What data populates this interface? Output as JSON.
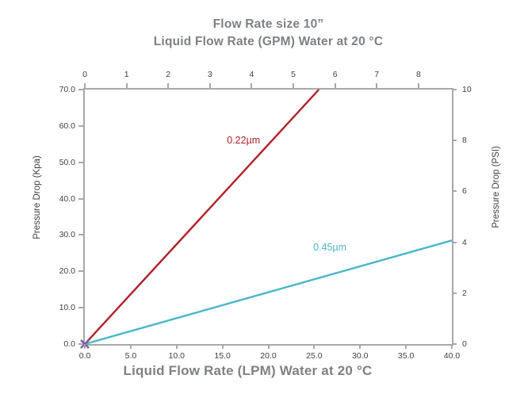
{
  "title": {
    "line1": "Flow Rate size 10”",
    "line2": "Liquid Flow Rate (GPM) Water at 20 °C"
  },
  "bottom_title": "Liquid Flow Rate (LPM) Water at 20 °C",
  "colors": {
    "title_gray": "#7d8184",
    "tick_text": "#3f3f3f",
    "axis_line": "#a8a8a8"
  },
  "chart_data": {
    "type": "line",
    "title": "Flow Rate size 10”",
    "subtitle": "Liquid Flow Rate (GPM) Water at 20 °C",
    "xlabel_bottom": "Liquid Flow Rate (LPM) Water at 20 °C",
    "xlabel_top": "Liquid Flow Rate (GPM) Water at 20 °C",
    "ylabel_left": "Pressure Drop (Kpa)",
    "ylabel_right": "Pressure Drop (PSI)",
    "grid": false,
    "legend_position": "inline-labels",
    "axes": {
      "bottom": {
        "range": [
          0,
          40
        ],
        "tick_values": [
          0,
          5,
          10,
          15,
          20,
          25,
          30,
          35,
          40
        ],
        "tick_labels": [
          "0.0",
          "5.0",
          "10.0",
          "15.0",
          "20.0",
          "25.0",
          "30.0",
          "35.0",
          "40.0"
        ]
      },
      "top": {
        "range": [
          0,
          8.8
        ],
        "tick_values": [
          0,
          1,
          2,
          3,
          4,
          5,
          6,
          7,
          8
        ],
        "tick_labels": [
          "0",
          "1",
          "2",
          "3",
          "4",
          "5",
          "6",
          "7",
          "8"
        ]
      },
      "left": {
        "range": [
          0,
          70
        ],
        "tick_values": [
          0,
          10,
          20,
          30,
          40,
          50,
          60,
          70
        ],
        "tick_labels": [
          "0.0",
          "10.0",
          "20.0",
          "30.0",
          "40.0",
          "50.0",
          "60.0",
          "70.0"
        ]
      },
      "right": {
        "range": [
          0,
          10
        ],
        "tick_values": [
          0,
          2,
          4,
          6,
          8,
          10
        ],
        "tick_labels": [
          "0",
          "2",
          "4",
          "6",
          "8",
          "10"
        ]
      }
    },
    "series": [
      {
        "name": "0.22µm",
        "color": "#b02027",
        "points": [
          [
            0,
            0
          ],
          [
            25.5,
            70
          ]
        ],
        "label_at": [
          17.3,
          56
        ]
      },
      {
        "name": "0.45µm",
        "color": "#4ab6c9",
        "points": [
          [
            0,
            0
          ],
          [
            40,
            28.5
          ]
        ],
        "label_at": [
          26.7,
          26.5
        ]
      }
    ],
    "origin_marker": {
      "shape": "x",
      "color": "#7a5ca6",
      "at": [
        0,
        0
      ],
      "size": 10
    }
  }
}
